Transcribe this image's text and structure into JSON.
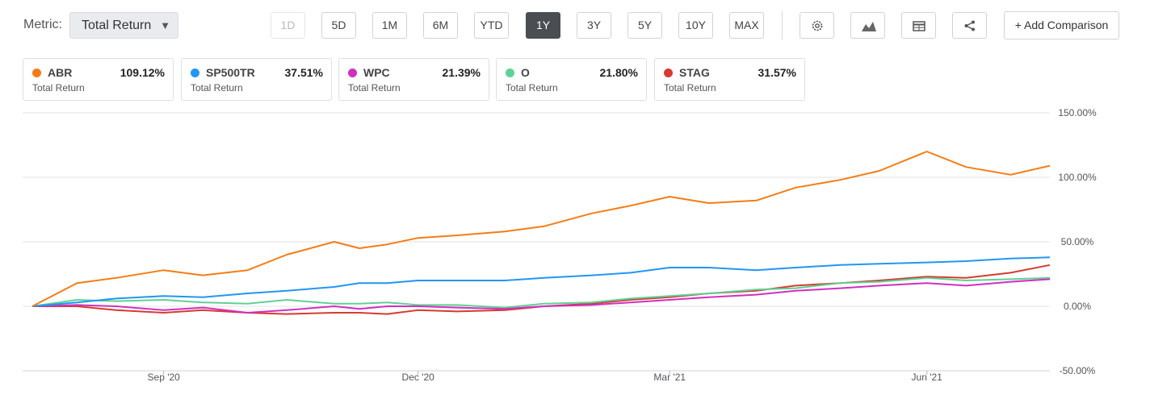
{
  "toolbar": {
    "metric_label": "Metric:",
    "metric_value": "Total Return",
    "ranges": [
      "1D",
      "5D",
      "1M",
      "6M",
      "YTD",
      "1Y",
      "3Y",
      "5Y",
      "10Y",
      "MAX"
    ],
    "active_range": "1Y",
    "disabled_range": "1D",
    "tools": [
      "gear-icon",
      "mountain-chart-icon",
      "table-icon",
      "share-icon"
    ],
    "add_comparison": "+ Add Comparison"
  },
  "legend": [
    {
      "ticker": "ABR",
      "value": "109.12%",
      "sub": "Total Return",
      "color": "#f57c14"
    },
    {
      "ticker": "SP500TR",
      "value": "37.51%",
      "sub": "Total Return",
      "color": "#2196f3"
    },
    {
      "ticker": "WPC",
      "value": "21.39%",
      "sub": "Total Return",
      "color": "#d12fc0"
    },
    {
      "ticker": "O",
      "value": "21.80%",
      "sub": "Total Return",
      "color": "#5fd196"
    },
    {
      "ticker": "STAG",
      "value": "31.57%",
      "sub": "Total Return",
      "color": "#d63b2f"
    }
  ],
  "chart_data": {
    "type": "line",
    "x_dates": [
      "2020-07-16",
      "2020-08-01",
      "2020-08-15",
      "2020-09-01",
      "2020-09-15",
      "2020-10-01",
      "2020-10-15",
      "2020-11-01",
      "2020-11-10",
      "2020-11-20",
      "2020-12-01",
      "2020-12-15",
      "2021-01-01",
      "2021-01-15",
      "2021-02-01",
      "2021-02-15",
      "2021-03-01",
      "2021-03-15",
      "2021-04-01",
      "2021-04-15",
      "2021-05-01",
      "2021-05-15",
      "2021-06-01",
      "2021-06-15",
      "2021-07-01",
      "2021-07-15"
    ],
    "x_ticks": [
      "Sep '20",
      "Dec '20",
      "Mar '21",
      "Jun '21"
    ],
    "x_tick_dates": [
      "2020-09-01",
      "2020-12-01",
      "2021-03-01",
      "2021-06-01"
    ],
    "y_ticks": [
      "150.00%",
      "100.00%",
      "50.00%",
      "0.00%",
      "-50.00%"
    ],
    "y_tick_values": [
      150,
      100,
      50,
      0,
      -50
    ],
    "ylim": [
      -50,
      150
    ],
    "grid": true,
    "series": [
      {
        "name": "ABR",
        "color": "#f57c14",
        "values": [
          0,
          18,
          22,
          28,
          24,
          28,
          40,
          50,
          45,
          48,
          53,
          55,
          58,
          62,
          72,
          78,
          85,
          80,
          82,
          92,
          98,
          105,
          120,
          108,
          102,
          109
        ]
      },
      {
        "name": "SP500TR",
        "color": "#2196f3",
        "values": [
          0,
          3,
          6,
          8,
          7,
          10,
          12,
          15,
          18,
          18,
          20,
          20,
          20,
          22,
          24,
          26,
          30,
          30,
          28,
          30,
          32,
          33,
          34,
          35,
          37,
          38
        ]
      },
      {
        "name": "WPC",
        "color": "#d12fc0",
        "values": [
          0,
          1,
          0,
          -3,
          -1,
          -5,
          -3,
          0,
          -2,
          0,
          0,
          -1,
          -2,
          0,
          1,
          3,
          5,
          7,
          9,
          12,
          14,
          16,
          18,
          16,
          19,
          21
        ]
      },
      {
        "name": "O",
        "color": "#5fd196",
        "values": [
          0,
          5,
          4,
          5,
          3,
          2,
          5,
          2,
          2,
          3,
          1,
          1,
          -1,
          2,
          3,
          6,
          8,
          10,
          13,
          14,
          18,
          19,
          22,
          20,
          21,
          22
        ]
      },
      {
        "name": "STAG",
        "color": "#d63b2f",
        "values": [
          0,
          0,
          -3,
          -5,
          -3,
          -5,
          -6,
          -5,
          -5,
          -6,
          -3,
          -4,
          -3,
          0,
          2,
          5,
          7,
          10,
          12,
          16,
          18,
          20,
          23,
          22,
          26,
          32
        ]
      }
    ]
  }
}
